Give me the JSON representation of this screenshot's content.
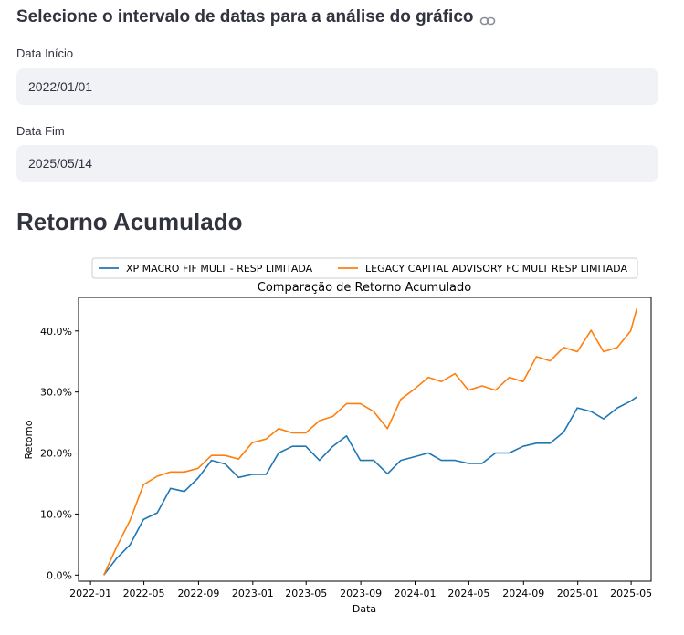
{
  "section_header": "Selecione o intervalo de datas para a análise do gráfico",
  "link_icon": "link-icon",
  "start_date": {
    "label": "Data Início",
    "value": "2022/01/01"
  },
  "end_date": {
    "label": "Data Fim",
    "value": "2025/05/14"
  },
  "chart_heading": "Retorno Acumulado",
  "chart_data": {
    "type": "line",
    "title": "Comparação de Retorno Acumulado",
    "xlabel": "Data",
    "ylabel": "Retorno",
    "legend_placement": "top-center-outside",
    "grid": false,
    "xlim": [
      "2021-12-05",
      "2025-06-15"
    ],
    "ylim": [
      -0.01,
      0.455
    ],
    "x_ticks": [
      "2022-01-01",
      "2022-05-01",
      "2022-09-01",
      "2023-01-01",
      "2023-05-01",
      "2023-09-01",
      "2024-01-01",
      "2024-05-01",
      "2024-09-01",
      "2025-01-01",
      "2025-05-01"
    ],
    "x_tick_labels": [
      "2022-01",
      "2022-05",
      "2022-09",
      "2023-01",
      "2023-05",
      "2023-09",
      "2024-01",
      "2024-05",
      "2024-09",
      "2025-01",
      "2025-05"
    ],
    "y_ticks": [
      0.0,
      0.1,
      0.2,
      0.3,
      0.4
    ],
    "y_tick_labels": [
      "0.0%",
      "10.0%",
      "20.0%",
      "30.0%",
      "40.0%"
    ],
    "x": [
      "2022-01-31",
      "2022-02-28",
      "2022-03-31",
      "2022-04-30",
      "2022-05-31",
      "2022-06-30",
      "2022-07-31",
      "2022-08-31",
      "2022-09-30",
      "2022-10-31",
      "2022-11-30",
      "2022-12-31",
      "2023-01-31",
      "2023-02-28",
      "2023-03-31",
      "2023-04-30",
      "2023-05-31",
      "2023-06-30",
      "2023-07-31",
      "2023-08-31",
      "2023-09-30",
      "2023-10-31",
      "2023-11-30",
      "2023-12-31",
      "2024-01-31",
      "2024-02-29",
      "2024-03-31",
      "2024-04-30",
      "2024-05-31",
      "2024-06-30",
      "2024-07-31",
      "2024-08-31",
      "2024-09-30",
      "2024-10-31",
      "2024-11-30",
      "2024-12-31",
      "2025-01-31",
      "2025-02-28",
      "2025-03-31",
      "2025-04-30",
      "2025-05-14"
    ],
    "series": [
      {
        "name": "XP MACRO FIF MULT - RESP LIMITADA",
        "color": "#1f77b4",
        "values": [
          0.0,
          0.027,
          0.05,
          0.091,
          0.102,
          0.142,
          0.137,
          0.159,
          0.188,
          0.182,
          0.16,
          0.165,
          0.165,
          0.2,
          0.211,
          0.211,
          0.188,
          0.211,
          0.228,
          0.188,
          0.188,
          0.166,
          0.188,
          0.194,
          0.2,
          0.188,
          0.188,
          0.183,
          0.183,
          0.2,
          0.2,
          0.211,
          0.216,
          0.216,
          0.234,
          0.274,
          0.268,
          0.256,
          0.274,
          0.285,
          0.292
        ]
      },
      {
        "name": "LEGACY CAPITAL ADVISORY FC MULT RESP LIMITADA",
        "color": "#ff7f0e",
        "values": [
          0.0,
          0.045,
          0.09,
          0.148,
          0.162,
          0.169,
          0.169,
          0.175,
          0.196,
          0.196,
          0.19,
          0.217,
          0.223,
          0.24,
          0.233,
          0.233,
          0.253,
          0.26,
          0.281,
          0.281,
          0.268,
          0.24,
          0.288,
          0.305,
          0.324,
          0.317,
          0.33,
          0.303,
          0.31,
          0.303,
          0.324,
          0.317,
          0.358,
          0.351,
          0.373,
          0.366,
          0.401,
          0.366,
          0.373,
          0.4,
          0.437
        ]
      }
    ]
  }
}
